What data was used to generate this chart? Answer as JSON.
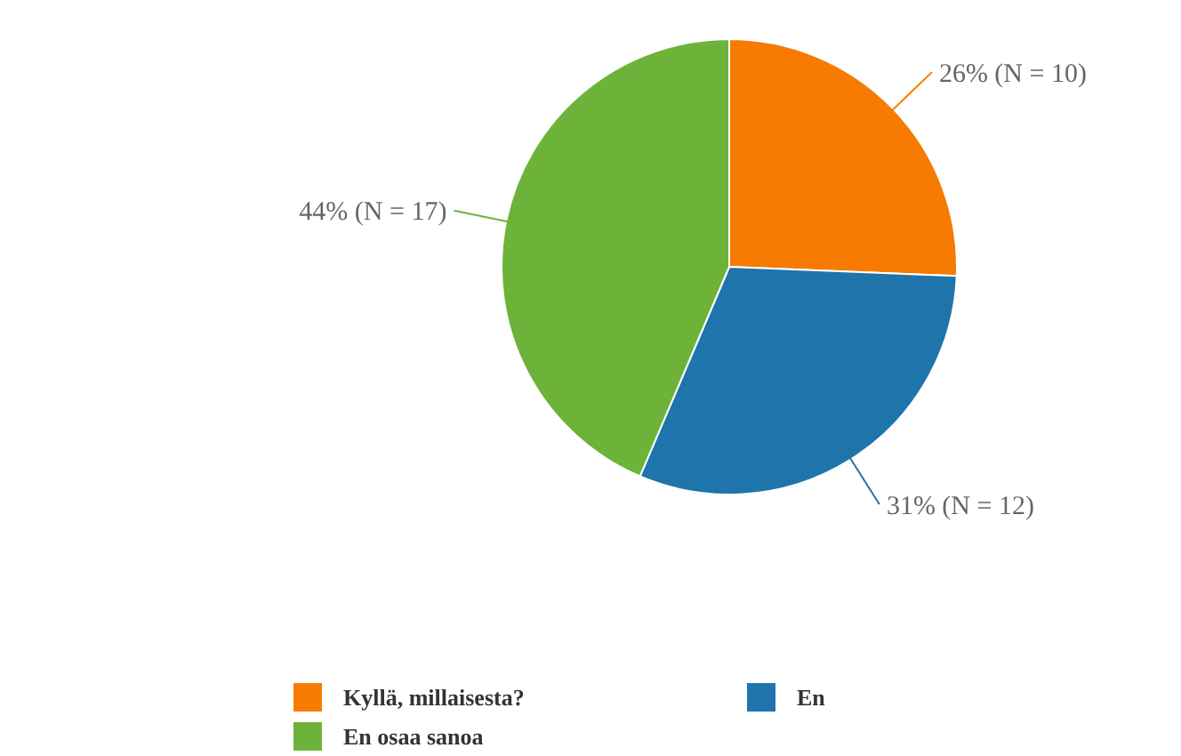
{
  "chart_data": {
    "type": "pie",
    "categories": [
      "Kyllä, millaisesta?",
      "En",
      "En osaa sanoa"
    ],
    "values": [
      10,
      12,
      17
    ],
    "colors": [
      "#f77b00",
      "#1f74ab",
      "#6db33a"
    ],
    "value_labels": [
      "26% (N = 10)",
      "31% (N = 12)",
      "44% (N = 17)"
    ],
    "legend": "bottom"
  }
}
